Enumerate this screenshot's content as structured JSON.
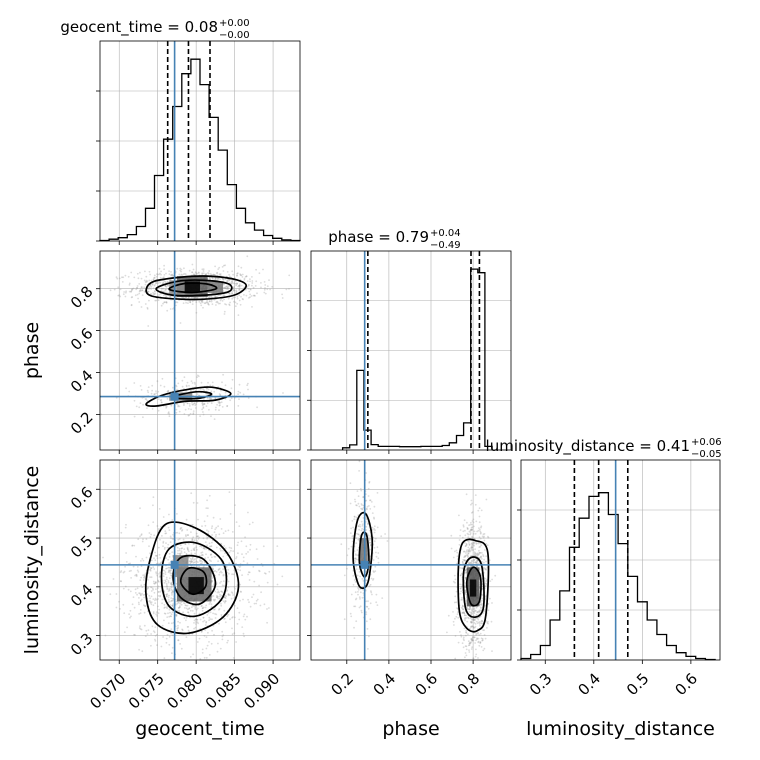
{
  "chart_data": {
    "type": "corner",
    "colors": {
      "truth": "#4682b4",
      "hist": "#000000",
      "quantile": "#000000",
      "grid": "#b0b0b0",
      "scatter": "#9a9a9a"
    },
    "params": [
      {
        "name": "geocent_time",
        "xlabel": "geocent_time",
        "ylabel": "",
        "range": [
          0.0675,
          0.0935
        ],
        "ticks": [
          "0.070",
          "0.075",
          "0.080",
          "0.085",
          "0.090"
        ],
        "tickvals": [
          0.07,
          0.075,
          0.08,
          0.085,
          0.09
        ],
        "truth": 0.0772,
        "title_main": "geocent_time = 0.08",
        "title_sup": "+0.00",
        "title_sub": "−0.00",
        "quantiles": [
          0.0763,
          0.079,
          0.0818
        ],
        "hist": {
          "min": 0.0675,
          "max": 0.0935,
          "counts": [
            0.3,
            1.0,
            1.8,
            3.5,
            8,
            18,
            36,
            56,
            74,
            92,
            100,
            86,
            68,
            50,
            31,
            18,
            10,
            6,
            3,
            1.5,
            0.6,
            0.3
          ]
        }
      },
      {
        "name": "phase",
        "xlabel": "phase",
        "ylabel": "phase",
        "range": [
          0.03,
          0.98
        ],
        "ticks": [
          "0.2",
          "0.4",
          "0.6",
          "0.8"
        ],
        "tickvals": [
          0.2,
          0.4,
          0.6,
          0.8
        ],
        "truth": 0.285,
        "title_main": "phase = 0.79",
        "title_sup": "+0.04",
        "title_sub": "−0.49",
        "quantiles": [
          0.3,
          0.79,
          0.83
        ],
        "hist": {
          "min": 0.18,
          "max": 0.89,
          "counts": [
            1.2,
            2.8,
            44,
            11,
            3,
            2,
            2,
            2,
            1.8,
            1.8,
            1.8,
            2,
            2,
            2,
            2.5,
            4,
            8,
            15,
            100,
            98,
            2
          ]
        }
      },
      {
        "name": "luminosity_distance",
        "xlabel": "luminosity_distance",
        "ylabel": "luminosity_distance",
        "range": [
          0.25,
          0.66
        ],
        "ticks": [
          "0.3",
          "0.4",
          "0.5",
          "0.6"
        ],
        "tickvals": [
          0.3,
          0.4,
          0.5,
          0.6
        ],
        "truth": 0.445,
        "title_main": "luminosity_distance = 0.41",
        "title_sup": "+0.06",
        "title_sub": "−0.05",
        "quantiles": [
          0.36,
          0.41,
          0.47
        ],
        "hist": {
          "min": 0.25,
          "max": 0.65,
          "counts": [
            0.8,
            3,
            8,
            22,
            38,
            62,
            78,
            90,
            92,
            80,
            64,
            46,
            32,
            22,
            14,
            8,
            4,
            2,
            0.8,
            0.3
          ]
        }
      }
    ],
    "hist_ylim": [
      0,
      110
    ],
    "hist_yticks_frac": [
      0.0,
      0.25,
      0.5,
      0.75
    ],
    "contours": {
      "phase_vs_geocent_time": {
        "x": "geocent_time",
        "y": "phase",
        "modes": [
          {
            "cx": 0.08,
            "cy": 0.805,
            "sx": 0.0035,
            "sy": 0.038,
            "w": 0.78
          },
          {
            "cx": 0.0795,
            "cy": 0.285,
            "sx": 0.0032,
            "sy": 0.035,
            "w": 0.22
          }
        ],
        "levels": [
          [
            [
              0.0735,
              0.795
            ],
            [
              0.0745,
              0.835
            ],
            [
              0.078,
              0.855
            ],
            [
              0.0815,
              0.86
            ],
            [
              0.085,
              0.845
            ],
            [
              0.0865,
              0.815
            ],
            [
              0.085,
              0.77
            ],
            [
              0.081,
              0.75
            ],
            [
              0.077,
              0.752
            ],
            [
              0.0742,
              0.765
            ]
          ],
          [
            [
              0.0748,
              0.8
            ],
            [
              0.0775,
              0.835
            ],
            [
              0.081,
              0.84
            ],
            [
              0.0842,
              0.823
            ],
            [
              0.0842,
              0.785
            ],
            [
              0.0805,
              0.768
            ],
            [
              0.0768,
              0.77
            ]
          ],
          [
            [
              0.0765,
              0.8
            ],
            [
              0.0785,
              0.825
            ],
            [
              0.0815,
              0.822
            ],
            [
              0.0826,
              0.8
            ],
            [
              0.08,
              0.783
            ],
            [
              0.0778,
              0.786
            ]
          ],
          [
            [
              0.0735,
              0.25
            ],
            [
              0.0755,
              0.29
            ],
            [
              0.079,
              0.32
            ],
            [
              0.082,
              0.33
            ],
            [
              0.0845,
              0.3
            ],
            [
              0.0825,
              0.268
            ],
            [
              0.0785,
              0.262
            ],
            [
              0.0748,
              0.24
            ]
          ],
          [
            [
              0.077,
              0.285
            ],
            [
              0.08,
              0.308
            ],
            [
              0.082,
              0.298
            ],
            [
              0.0805,
              0.278
            ],
            [
              0.0778,
              0.276
            ]
          ]
        ],
        "density": [
          {
            "x": [
              0.0775,
              0.0815
            ],
            "y": [
              0.76,
              0.86
            ],
            "v": 0.55
          },
          {
            "x": [
              0.0785,
              0.0805
            ],
            "y": [
              0.785,
              0.835
            ],
            "v": 1.0
          },
          {
            "x": [
              0.0765,
              0.0785
            ],
            "y": [
              0.77,
              0.84
            ],
            "v": 0.3
          },
          {
            "x": [
              0.0815,
              0.0835
            ],
            "y": [
              0.78,
              0.835
            ],
            "v": 0.4
          },
          {
            "x": [
              0.0765,
              0.0795
            ],
            "y": [
              0.265,
              0.305
            ],
            "v": 0.35
          }
        ]
      },
      "luminosity_distance_vs_geocent_time": {
        "x": "geocent_time",
        "y": "luminosity_distance",
        "modes": [
          {
            "cx": 0.079,
            "cy": 0.41,
            "sx": 0.0035,
            "sy": 0.055,
            "w": 1.0
          }
        ],
        "levels": [
          [
            [
              0.0735,
              0.38
            ],
            [
              0.074,
              0.455
            ],
            [
              0.076,
              0.528
            ],
            [
              0.08,
              0.52
            ],
            [
              0.084,
              0.47
            ],
            [
              0.0855,
              0.4
            ],
            [
              0.0835,
              0.338
            ],
            [
              0.079,
              0.305
            ],
            [
              0.075,
              0.322
            ]
          ],
          [
            [
              0.0755,
              0.42
            ],
            [
              0.0765,
              0.478
            ],
            [
              0.08,
              0.49
            ],
            [
              0.0835,
              0.45
            ],
            [
              0.0835,
              0.38
            ],
            [
              0.08,
              0.34
            ],
            [
              0.0765,
              0.36
            ]
          ],
          [
            [
              0.077,
              0.42
            ],
            [
              0.078,
              0.46
            ],
            [
              0.081,
              0.456
            ],
            [
              0.0825,
              0.405
            ],
            [
              0.0805,
              0.365
            ],
            [
              0.078,
              0.378
            ]
          ],
          [
            [
              0.078,
              0.41
            ],
            [
              0.079,
              0.438
            ],
            [
              0.081,
              0.43
            ],
            [
              0.0812,
              0.4
            ],
            [
              0.0795,
              0.385
            ]
          ]
        ],
        "density": [
          {
            "x": [
              0.0775,
              0.082
            ],
            "y": [
              0.37,
              0.44
            ],
            "v": 0.5
          },
          {
            "x": [
              0.079,
              0.081
            ],
            "y": [
              0.385,
              0.42
            ],
            "v": 1.0
          },
          {
            "x": [
              0.077,
              0.079
            ],
            "y": [
              0.42,
              0.465
            ],
            "v": 0.35
          }
        ]
      },
      "luminosity_distance_vs_phase": {
        "x": "phase",
        "y": "luminosity_distance",
        "modes": [
          {
            "cx": 0.8,
            "cy": 0.4,
            "sx": 0.03,
            "sy": 0.055,
            "w": 0.75
          },
          {
            "cx": 0.28,
            "cy": 0.47,
            "sx": 0.03,
            "sy": 0.06,
            "w": 0.25
          }
        ],
        "levels": [
          [
            [
              0.23,
              0.46
            ],
            [
              0.25,
              0.535
            ],
            [
              0.29,
              0.55
            ],
            [
              0.32,
              0.5
            ],
            [
              0.31,
              0.43
            ],
            [
              0.29,
              0.4
            ],
            [
              0.255,
              0.405
            ]
          ],
          [
            [
              0.26,
              0.45
            ],
            [
              0.27,
              0.505
            ],
            [
              0.295,
              0.505
            ],
            [
              0.305,
              0.45
            ],
            [
              0.285,
              0.42
            ]
          ],
          [
            [
              0.73,
              0.44
            ],
            [
              0.75,
              0.49
            ],
            [
              0.81,
              0.495
            ],
            [
              0.87,
              0.47
            ],
            [
              0.86,
              0.34
            ],
            [
              0.82,
              0.31
            ],
            [
              0.77,
              0.315
            ],
            [
              0.735,
              0.35
            ]
          ],
          [
            [
              0.755,
              0.43
            ],
            [
              0.79,
              0.46
            ],
            [
              0.84,
              0.445
            ],
            [
              0.85,
              0.36
            ],
            [
              0.81,
              0.338
            ],
            [
              0.765,
              0.355
            ]
          ],
          [
            [
              0.77,
              0.41
            ],
            [
              0.8,
              0.44
            ],
            [
              0.835,
              0.42
            ],
            [
              0.83,
              0.37
            ],
            [
              0.79,
              0.365
            ]
          ]
        ],
        "density": [
          {
            "x": [
              0.77,
              0.83
            ],
            "y": [
              0.36,
              0.44
            ],
            "v": 0.6
          },
          {
            "x": [
              0.785,
              0.815
            ],
            "y": [
              0.38,
              0.415
            ],
            "v": 1.0
          },
          {
            "x": [
              0.26,
              0.3
            ],
            "y": [
              0.44,
              0.5
            ],
            "v": 0.45
          }
        ]
      }
    }
  }
}
